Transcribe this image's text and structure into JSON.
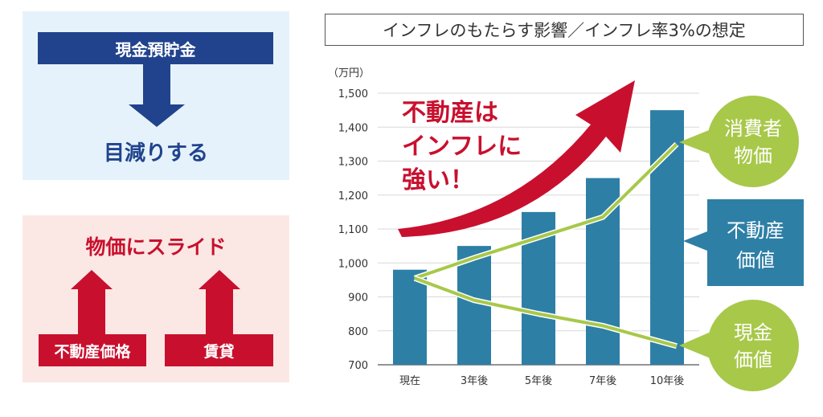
{
  "left_panel": {
    "cash_deposit": "現金預貯金",
    "decreases": "目減りする",
    "slides_with_prices": "物価にスライド",
    "real_estate_price": "不動産価格",
    "rent": "賃貸"
  },
  "chart_title": "インフレのもたらす影響／インフレ率3%の想定",
  "chart_data": {
    "type": "bar",
    "title": "インフレのもたらす影響／インフレ率3%の想定",
    "yunit": "（万円）",
    "categories": [
      "現在",
      "3年後",
      "5年後",
      "7年後",
      "10年後"
    ],
    "ylim": [
      700,
      1500
    ],
    "yticks": [
      "700",
      "800",
      "900",
      "1,000",
      "1,100",
      "1,200",
      "1,300",
      "1,400",
      "1,500"
    ],
    "series": [
      {
        "name": "不動産価値",
        "type": "bar",
        "values": [
          980,
          1050,
          1150,
          1250,
          1450
        ],
        "color": "#2e7fa6"
      },
      {
        "name": "消費者物価",
        "type": "line",
        "values": [
          955,
          1015,
          1075,
          1135,
          1350
        ],
        "color": "#a8c84a"
      },
      {
        "name": "現金価値",
        "type": "line",
        "values": [
          955,
          890,
          850,
          815,
          755
        ],
        "color": "#a8c84a"
      }
    ],
    "grid": true
  },
  "annotations": {
    "strong_lines": [
      "不動産は",
      "インフレに",
      "強い！"
    ],
    "consumer_price_lines": [
      "消費者",
      "物価"
    ],
    "real_estate_value_lines": [
      "不動産",
      "価値"
    ],
    "cash_value_lines": [
      "現金",
      "価値"
    ]
  },
  "colors": {
    "navy": "#21438d",
    "red": "#c8102e",
    "teal": "#2e7fa6",
    "green": "#a8c84a",
    "light_blue_bg": "#e6f2fb",
    "light_pink_bg": "#fbe8e4"
  }
}
